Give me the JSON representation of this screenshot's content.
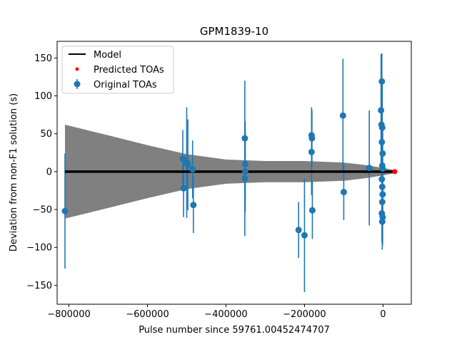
{
  "chart_data": {
    "type": "scatter",
    "title": "GPM1839-10",
    "xlabel": "Pulse number since 59761.00452474707",
    "ylabel": "Deviation from non-F1 solution (s)",
    "xlim": [
      -830000,
      72000
    ],
    "ylim": [
      -175,
      172
    ],
    "xticks": [
      -800000,
      -600000,
      -400000,
      -200000,
      0
    ],
    "xtick_labels": [
      "−800000",
      "−600000",
      "−400000",
      "−200000",
      "0"
    ],
    "yticks": [
      -150,
      -100,
      -50,
      0,
      50,
      100,
      150
    ],
    "ytick_labels": [
      "−150",
      "−100",
      "−50",
      "0",
      "50",
      "100",
      "150"
    ],
    "grid": false,
    "legend_position": "top-left",
    "colors": {
      "model": "#000000",
      "predicted": "#ff0000",
      "original": "#1f77b4",
      "band": "#808080"
    },
    "series": [
      {
        "name": "Model",
        "kind": "line",
        "x": [
          -810000,
          30000
        ],
        "y": [
          0,
          0
        ]
      },
      {
        "name": "Predicted TOAs",
        "kind": "scatter",
        "x": [
          30000
        ],
        "y": [
          0
        ]
      },
      {
        "name": "Original TOAs",
        "kind": "errorbar",
        "points": [
          {
            "x": -810000,
            "y": -52,
            "err": 76
          },
          {
            "x": -510000,
            "y": 17,
            "err": 38
          },
          {
            "x": -508000,
            "y": -22,
            "err": 38
          },
          {
            "x": -500000,
            "y": 12,
            "err": 73
          },
          {
            "x": -497000,
            "y": 9,
            "err": 60
          },
          {
            "x": -485000,
            "y": 3,
            "err": 38
          },
          {
            "x": -483000,
            "y": -44,
            "err": 37
          },
          {
            "x": -352000,
            "y": 44,
            "err": 76
          },
          {
            "x": -351000,
            "y": 10,
            "err": 56
          },
          {
            "x": -351000,
            "y": 0,
            "err": 54
          },
          {
            "x": -352000,
            "y": -9,
            "err": 76
          },
          {
            "x": -215000,
            "y": -77,
            "err": 37
          },
          {
            "x": -200000,
            "y": -84,
            "err": 75
          },
          {
            "x": -182000,
            "y": 48,
            "err": 37
          },
          {
            "x": -181000,
            "y": 44,
            "err": 37
          },
          {
            "x": -182000,
            "y": 26,
            "err": 57
          },
          {
            "x": -180000,
            "y": -51,
            "err": 38
          },
          {
            "x": -102000,
            "y": 74,
            "err": 75
          },
          {
            "x": -100000,
            "y": -27,
            "err": 37
          },
          {
            "x": -35000,
            "y": 5,
            "err": 76
          },
          {
            "x": -5000,
            "y": 81,
            "err": 74
          },
          {
            "x": -3000,
            "y": 119,
            "err": 37
          },
          {
            "x": -4000,
            "y": 62,
            "err": 74
          },
          {
            "x": -2000,
            "y": 58,
            "err": 57
          },
          {
            "x": -3000,
            "y": 39,
            "err": 37
          },
          {
            "x": -1000,
            "y": 24,
            "err": 36
          },
          {
            "x": -2000,
            "y": 8,
            "err": 37
          },
          {
            "x": -1000,
            "y": 4,
            "err": 56
          },
          {
            "x": -3000,
            "y": -10,
            "err": 36
          },
          {
            "x": -2000,
            "y": -20,
            "err": 37
          },
          {
            "x": -1000,
            "y": -30,
            "err": 36
          },
          {
            "x": -2000,
            "y": -40,
            "err": 37
          },
          {
            "x": -3000,
            "y": -55,
            "err": 38
          },
          {
            "x": -1000,
            "y": -60,
            "err": 37
          },
          {
            "x": -2000,
            "y": -66,
            "err": 37
          }
        ]
      }
    ],
    "uncertainty_band": {
      "x": [
        -810000,
        -700000,
        -600000,
        -500000,
        -400000,
        -300000,
        -200000,
        -100000,
        -50000,
        0,
        30000
      ],
      "upper": [
        62,
        48,
        35,
        23,
        16,
        14,
        14,
        12,
        9,
        5,
        2
      ],
      "lower": [
        -62,
        -48,
        -35,
        -23,
        -16,
        -14,
        -14,
        -12,
        -9,
        -5,
        -2
      ]
    }
  }
}
